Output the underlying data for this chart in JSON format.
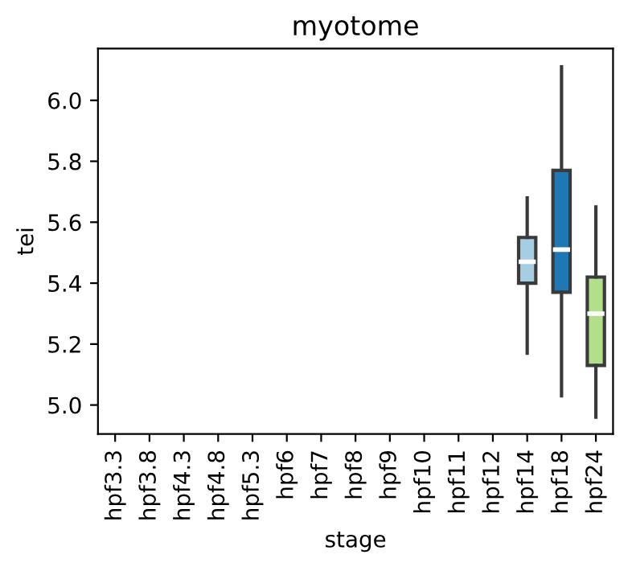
{
  "chart_data": {
    "type": "box",
    "title": "myotome",
    "xlabel": "stage",
    "ylabel": "tei",
    "categories": [
      "hpf3.3",
      "hpf3.8",
      "hpf4.3",
      "hpf4.8",
      "hpf5.3",
      "hpf6",
      "hpf7",
      "hpf8",
      "hpf9",
      "hpf10",
      "hpf11",
      "hpf12",
      "hpf14",
      "hpf18",
      "hpf24"
    ],
    "boxes": [
      null,
      null,
      null,
      null,
      null,
      null,
      null,
      null,
      null,
      null,
      null,
      null,
      {
        "low": 5.17,
        "q1": 5.4,
        "median": 5.47,
        "q3": 5.55,
        "high": 5.68
      },
      {
        "low": 5.03,
        "q1": 5.37,
        "median": 5.51,
        "q3": 5.77,
        "high": 6.11
      },
      {
        "low": 4.96,
        "q1": 5.13,
        "median": 5.3,
        "q3": 5.42,
        "high": 5.65
      }
    ],
    "colors": [
      "#a6cee3",
      "#a6cee3",
      "#a6cee3",
      "#a6cee3",
      "#a6cee3",
      "#a6cee3",
      "#a6cee3",
      "#a6cee3",
      "#a6cee3",
      "#a6cee3",
      "#a6cee3",
      "#a6cee3",
      "#a6cee3",
      "#1f78b4",
      "#b2df8a"
    ],
    "ylim": [
      4.905,
      6.17
    ],
    "yticks": [
      {
        "value": 5.0,
        "label": "5.0"
      },
      {
        "value": 5.2,
        "label": "5.2"
      },
      {
        "value": 5.4,
        "label": "5.4"
      },
      {
        "value": 5.6,
        "label": "5.6"
      },
      {
        "value": 5.8,
        "label": "5.8"
      },
      {
        "value": 6.0,
        "label": "6.0"
      }
    ],
    "grid": false,
    "legend": false
  }
}
